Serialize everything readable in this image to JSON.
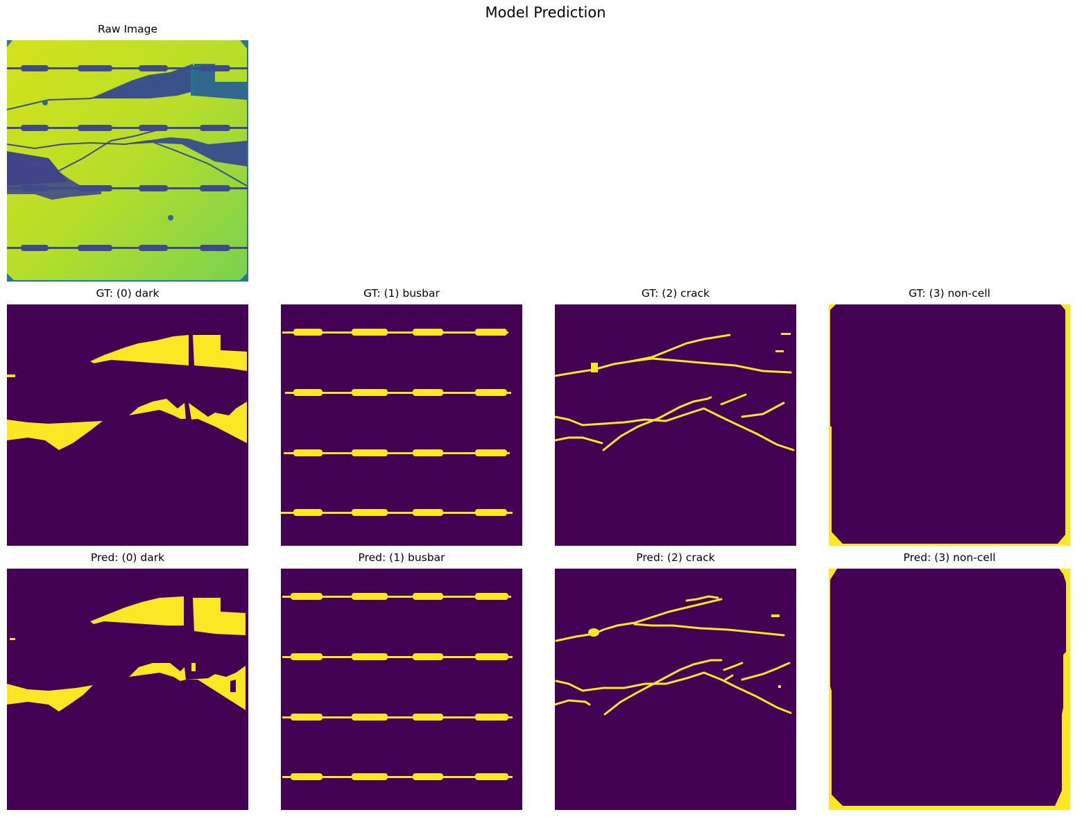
{
  "figure": {
    "title": "Model Prediction",
    "colors": {
      "background": "#440154",
      "foreground": "#fde725"
    }
  },
  "panels": {
    "raw": {
      "title": "Raw Image"
    },
    "gt_dark": {
      "title": "GT: (0) dark"
    },
    "gt_busbar": {
      "title": "GT: (1) busbar"
    },
    "gt_crack": {
      "title": "GT: (2) crack"
    },
    "gt_noncell": {
      "title": "GT: (3) non-cell"
    },
    "pred_dark": {
      "title": "Pred: (0) dark"
    },
    "pred_busbar": {
      "title": "Pred: (1) busbar"
    },
    "pred_crack": {
      "title": "Pred: (2) crack"
    },
    "pred_noncell": {
      "title": "Pred: (3) non-cell"
    }
  }
}
